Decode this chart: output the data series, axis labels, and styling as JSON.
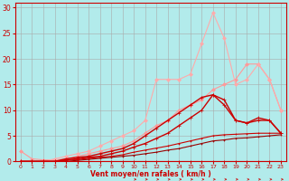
{
  "background_color": "#b2ebeb",
  "grid_color": "#aaaaaa",
  "xlabel": "Vent moyen/en rafales ( km/h )",
  "xlabel_color": "#cc0000",
  "tick_color": "#cc0000",
  "xlim": [
    -0.5,
    23.5
  ],
  "ylim": [
    0,
    31
  ],
  "xticks": [
    0,
    1,
    2,
    3,
    4,
    5,
    6,
    7,
    8,
    9,
    10,
    11,
    12,
    13,
    14,
    15,
    16,
    17,
    18,
    19,
    20,
    21,
    22,
    23
  ],
  "yticks": [
    0,
    5,
    10,
    15,
    20,
    25,
    30
  ],
  "lines": [
    {
      "x": [
        0,
        1,
        2,
        3,
        4,
        5,
        6,
        7,
        8,
        9,
        10,
        11,
        12,
        13,
        14,
        15,
        16,
        17,
        18,
        19,
        20,
        21,
        22,
        23
      ],
      "y": [
        0,
        0,
        0,
        0,
        0,
        0,
        0,
        0,
        0,
        0,
        0,
        0,
        0,
        0,
        0,
        0,
        0,
        0,
        0,
        0,
        0,
        0,
        0,
        0
      ],
      "color": "#cc0000",
      "marker": "+",
      "markersize": 2,
      "linewidth": 0.8,
      "zorder": 3
    },
    {
      "x": [
        0,
        1,
        2,
        3,
        4,
        5,
        6,
        7,
        8,
        9,
        10,
        11,
        12,
        13,
        14,
        15,
        16,
        17,
        18,
        19,
        20,
        21,
        22,
        23
      ],
      "y": [
        0,
        0,
        0,
        0,
        0,
        0.2,
        0.4,
        0.6,
        0.8,
        1,
        1.2,
        1.5,
        1.8,
        2.2,
        2.5,
        3,
        3.5,
        4,
        4.2,
        4.5,
        4.6,
        4.8,
        5,
        5.2
      ],
      "color": "#990000",
      "marker": "+",
      "markersize": 2,
      "linewidth": 0.8,
      "zorder": 3
    },
    {
      "x": [
        0,
        1,
        2,
        3,
        4,
        5,
        6,
        7,
        8,
        9,
        10,
        11,
        12,
        13,
        14,
        15,
        16,
        17,
        18,
        19,
        20,
        21,
        22,
        23
      ],
      "y": [
        0,
        0,
        0,
        0,
        0.2,
        0.4,
        0.6,
        0.8,
        1,
        1.3,
        1.8,
        2.2,
        2.6,
        3,
        3.5,
        4,
        4.5,
        5,
        5.2,
        5.3,
        5.4,
        5.5,
        5.5,
        5.5
      ],
      "color": "#cc0000",
      "marker": "+",
      "markersize": 2,
      "linewidth": 0.8,
      "zorder": 3
    },
    {
      "x": [
        0,
        1,
        2,
        3,
        4,
        5,
        6,
        7,
        8,
        9,
        10,
        11,
        12,
        13,
        14,
        15,
        16,
        17,
        18,
        19,
        20,
        21,
        22,
        23
      ],
      "y": [
        0,
        0,
        0,
        0,
        0.3,
        0.5,
        0.8,
        1,
        1.5,
        2,
        2.8,
        3.5,
        4.5,
        5.5,
        7,
        8.5,
        10,
        13,
        12,
        8,
        7.5,
        8.5,
        8,
        5.5
      ],
      "color": "#cc0000",
      "marker": "+",
      "markersize": 2.5,
      "linewidth": 1.0,
      "zorder": 4
    },
    {
      "x": [
        0,
        1,
        2,
        3,
        4,
        5,
        6,
        7,
        8,
        9,
        10,
        11,
        12,
        13,
        14,
        15,
        16,
        17,
        18,
        19,
        20,
        21,
        22,
        23
      ],
      "y": [
        0,
        0,
        0,
        0,
        0.5,
        0.8,
        1,
        1.5,
        2,
        2.5,
        3.5,
        5,
        6.5,
        8,
        9.5,
        11,
        12.5,
        13,
        11,
        8,
        7.5,
        8,
        8,
        5.5
      ],
      "color": "#cc0000",
      "marker": "+",
      "markersize": 2.5,
      "linewidth": 1.0,
      "zorder": 4
    },
    {
      "x": [
        0,
        1,
        2,
        3,
        4,
        5,
        6,
        7,
        8,
        9,
        10,
        11,
        12,
        13,
        14,
        15,
        16,
        17,
        18,
        19,
        20,
        21,
        22,
        23
      ],
      "y": [
        2,
        0.5,
        0.3,
        0.3,
        0.5,
        1,
        1.5,
        2,
        2.5,
        3,
        4,
        5.5,
        7,
        8,
        10,
        11,
        12,
        14,
        15,
        16,
        19,
        19,
        16,
        10
      ],
      "color": "#ff9999",
      "marker": "D",
      "markersize": 2,
      "linewidth": 0.8,
      "zorder": 2
    },
    {
      "x": [
        0,
        1,
        2,
        3,
        4,
        5,
        6,
        7,
        8,
        9,
        10,
        11,
        12,
        13,
        14,
        15,
        16,
        17,
        18,
        19,
        20,
        21,
        22,
        23
      ],
      "y": [
        0,
        0,
        0,
        0.5,
        1,
        1.5,
        2,
        3,
        4,
        5,
        6,
        8,
        16,
        16,
        16,
        17,
        23,
        29,
        24,
        15,
        16,
        19,
        16,
        10
      ],
      "color": "#ffaaaa",
      "marker": "D",
      "markersize": 2,
      "linewidth": 0.8,
      "zorder": 2
    }
  ]
}
